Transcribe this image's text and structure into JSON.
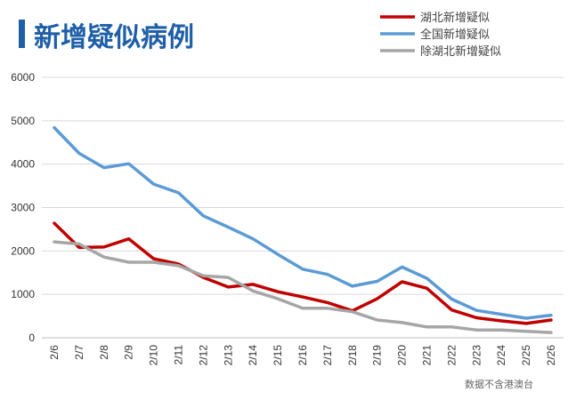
{
  "chart_data": {
    "type": "line",
    "title": "新增疑似病例",
    "source_note": "数据不含港澳台",
    "categories": [
      "2/6",
      "2/7",
      "2/8",
      "2/9",
      "2/10",
      "2/11",
      "2/12",
      "2/13",
      "2/14",
      "2/15",
      "2/16",
      "2/17",
      "2/18",
      "2/19",
      "2/20",
      "2/21",
      "2/22",
      "2/23",
      "2/24",
      "2/25",
      "2/26"
    ],
    "ylim": [
      0,
      6000
    ],
    "yticks": [
      0,
      1000,
      2000,
      3000,
      4000,
      5000,
      6000
    ],
    "grid": true,
    "legend_position": "top-right",
    "series": [
      {
        "name": "湖北新增疑似",
        "color": "#c00000",
        "values": [
          2640,
          2080,
          2090,
          2280,
          1820,
          1700,
          1390,
          1170,
          1230,
          1060,
          940,
          810,
          620,
          900,
          1290,
          1140,
          640,
          460,
          390,
          330,
          410
        ]
      },
      {
        "name": "全国新增疑似",
        "color": "#5b9bd5",
        "values": [
          4840,
          4250,
          3920,
          4010,
          3540,
          3340,
          2810,
          2550,
          2280,
          1920,
          1580,
          1460,
          1190,
          1300,
          1630,
          1370,
          890,
          630,
          540,
          450,
          520
        ]
      },
      {
        "name": "除湖北新增疑似",
        "color": "#a6a6a6",
        "values": [
          2210,
          2160,
          1860,
          1740,
          1740,
          1660,
          1430,
          1390,
          1080,
          900,
          680,
          680,
          600,
          410,
          350,
          250,
          250,
          180,
          180,
          150,
          120
        ]
      }
    ]
  },
  "colors": {
    "title_accent": "#1f5fa8",
    "title_text": "#1f5fa8"
  }
}
